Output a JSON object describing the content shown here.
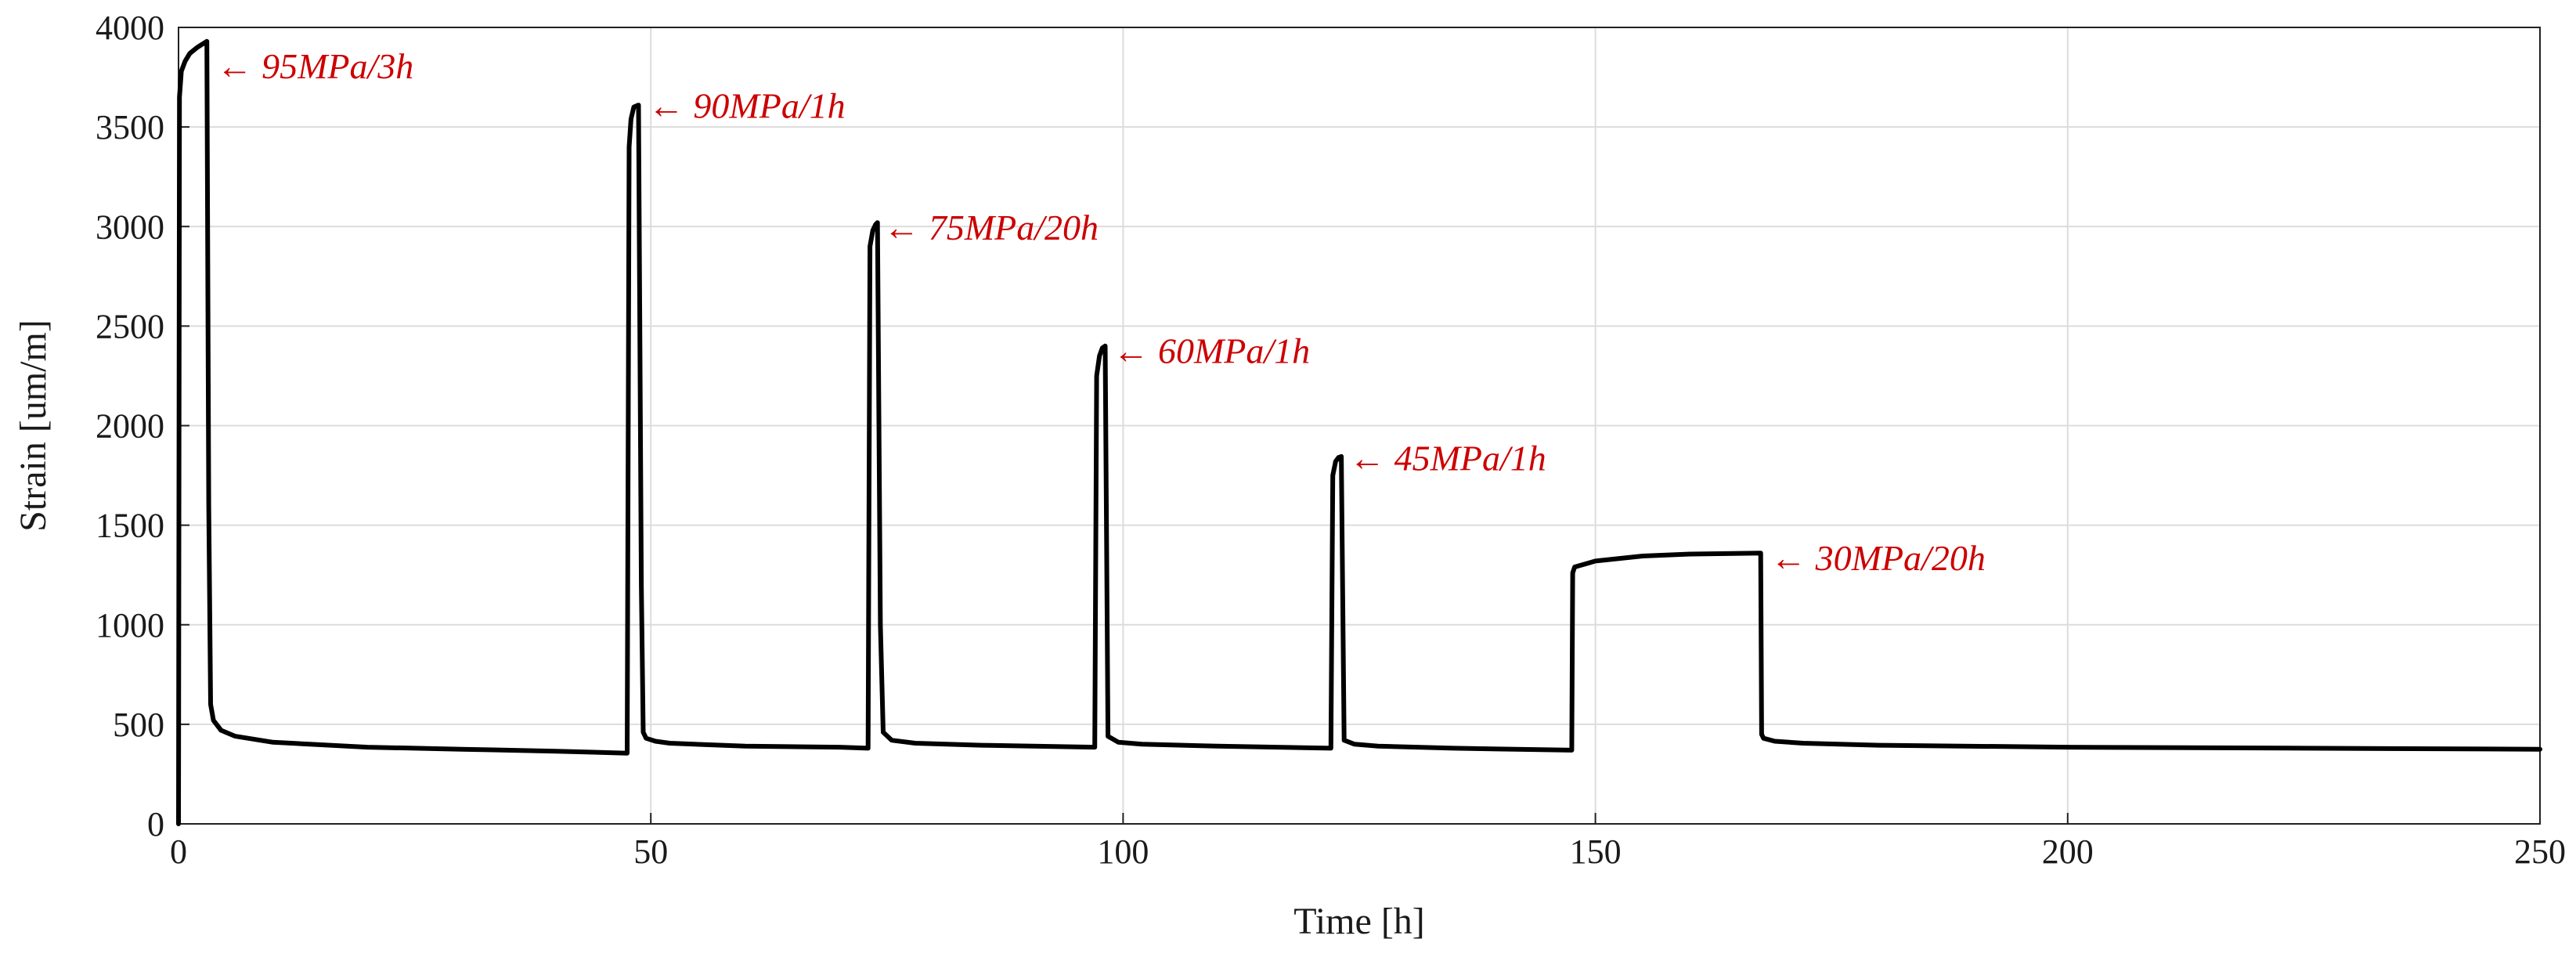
{
  "chart_data": {
    "type": "line",
    "title": "",
    "xlabel": "Time [h]",
    "ylabel": "Strain [um/m]",
    "xlim": [
      0,
      250
    ],
    "ylim": [
      0,
      4000
    ],
    "xticks": [
      0,
      50,
      100,
      150,
      200,
      250
    ],
    "yticks": [
      0,
      500,
      1000,
      1500,
      2000,
      2500,
      3000,
      3500,
      4000
    ],
    "grid": true,
    "legend": "none",
    "annotation_color": "#cc0000",
    "series_color": "#000000",
    "series": [
      {
        "name": "Strain",
        "x": [
          0,
          0.1,
          0.3,
          0.7,
          1.2,
          2,
          3,
          3.2,
          3.4,
          3.7,
          4.5,
          6,
          10,
          20,
          30,
          40,
          47.5,
          47.7,
          47.9,
          48.2,
          48.7,
          49,
          49.2,
          49.5,
          50.5,
          52,
          60,
          70,
          73,
          73.2,
          73.5,
          73.8,
          74,
          74.3,
          74.6,
          75.5,
          78,
          85,
          97,
          97.2,
          97.5,
          97.8,
          98.1,
          98.4,
          99.5,
          102,
          110,
          122,
          122.2,
          122.5,
          122.8,
          123.1,
          123.4,
          124.5,
          127,
          135,
          147.5,
          147.6,
          147.8,
          150,
          155,
          160,
          167.5,
          167.6,
          167.8,
          169,
          172,
          180,
          200,
          225,
          250
        ],
        "y": [
          0,
          3650,
          3780,
          3830,
          3870,
          3900,
          3930,
          1600,
          600,
          520,
          470,
          440,
          410,
          385,
          375,
          365,
          355,
          3400,
          3540,
          3600,
          3610,
          1200,
          460,
          430,
          415,
          405,
          390,
          385,
          380,
          2900,
          2980,
          3010,
          3020,
          1000,
          460,
          420,
          405,
          395,
          385,
          2250,
          2350,
          2390,
          2400,
          440,
          410,
          400,
          390,
          380,
          1750,
          1820,
          1840,
          1845,
          420,
          400,
          390,
          380,
          370,
          1260,
          1290,
          1320,
          1345,
          1355,
          1360,
          450,
          430,
          415,
          405,
          395,
          385,
          380,
          375
        ]
      }
    ],
    "annotations": [
      {
        "text": "← 95MPa/3h",
        "x": 3.2,
        "y": 3800
      },
      {
        "text": "← 90MPa/1h",
        "x": 48.9,
        "y": 3600
      },
      {
        "text": "← 75MPa/20h",
        "x": 73.8,
        "y": 2990
      },
      {
        "text": "← 60MPa/1h",
        "x": 98.1,
        "y": 2370
      },
      {
        "text": "← 45MPa/1h",
        "x": 123.1,
        "y": 1830
      },
      {
        "text": "← 30MPa/20h",
        "x": 167.7,
        "y": 1330
      }
    ]
  }
}
